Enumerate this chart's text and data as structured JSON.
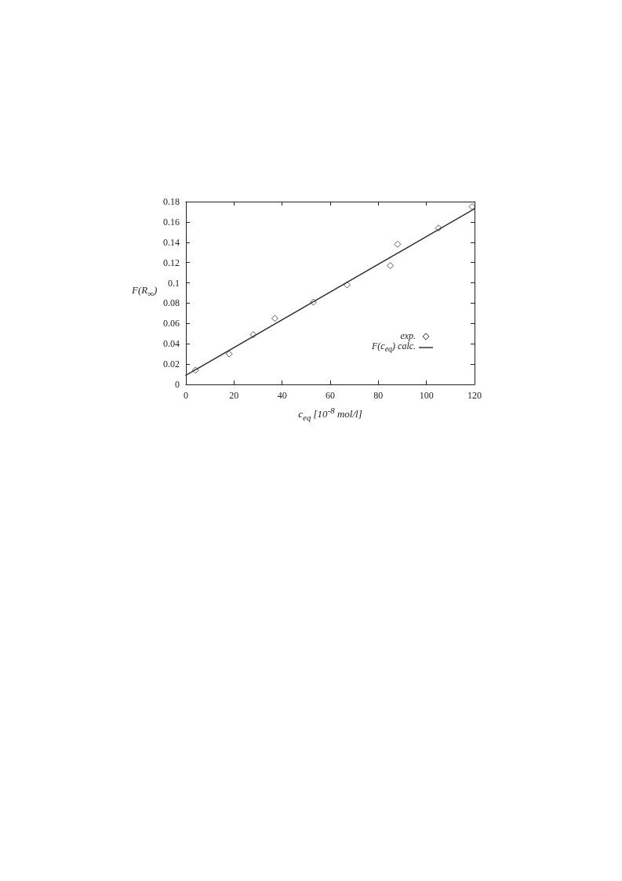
{
  "chart_data": {
    "type": "scatter",
    "xlabel": "c$_{eq}$ [10$^{-8}$ mol/l]",
    "ylabel": "F(R$_{∞}$)",
    "xlim": [
      0,
      120
    ],
    "xticks": [
      0,
      20,
      40,
      60,
      80,
      100,
      120
    ],
    "ylim": [
      0,
      0.18
    ],
    "yticks": [
      0,
      0.02,
      0.04,
      0.06,
      0.08,
      0.1,
      0.12,
      0.14,
      0.16,
      0.18
    ],
    "grid": false,
    "legend": "right",
    "series": [
      {
        "name": "exp.",
        "marker": "diamond",
        "color": "#333333",
        "x": [
          4,
          18,
          28,
          37,
          53,
          67,
          85,
          88,
          105,
          119
        ],
        "values": [
          0.014,
          0.03,
          0.049,
          0.065,
          0.081,
          0.098,
          0.117,
          0.138,
          0.154,
          0.175
        ]
      },
      {
        "name": "F(c$_{eq}$) calc.",
        "type": "line",
        "marker": "none",
        "line_style": "solid",
        "color": "#333333",
        "x": [
          0,
          120
        ],
        "values": [
          0.009,
          0.173
        ]
      }
    ]
  }
}
